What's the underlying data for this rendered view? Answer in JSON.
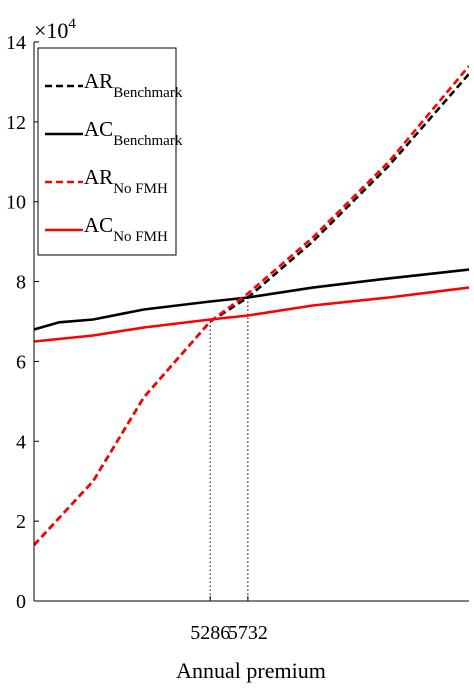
{
  "chart_data": {
    "type": "line",
    "xlabel": "Annual premium",
    "ylabel": "",
    "y_multiplier": {
      "base": "×10",
      "exponent": "4"
    },
    "ylim": [
      0,
      140000
    ],
    "y_ticks": [
      0,
      20000,
      40000,
      60000,
      80000,
      100000,
      120000,
      140000
    ],
    "y_tick_labels": [
      "0",
      "2",
      "4",
      "6",
      "8",
      "10",
      "12",
      "14"
    ],
    "xlim": [
      3200,
      8350
    ],
    "x_ticks": [
      5286,
      5732
    ],
    "x_tick_labels": [
      "5286",
      "5732"
    ],
    "vlines": [
      5286,
      5732
    ],
    "grid": false,
    "legend_position": "top-left",
    "series": [
      {
        "name": "AR",
        "subscript": "Benchmark",
        "color": "#000000",
        "dashed": true,
        "x": [
          3200,
          3900,
          4500,
          5286,
          5732,
          6500,
          7400,
          8350
        ],
        "y": [
          14000,
          30000,
          51000,
          70000,
          76000,
          90000,
          109000,
          132000
        ]
      },
      {
        "name": "AC",
        "subscript": "Benchmark",
        "color": "#000000",
        "dashed": false,
        "x": [
          3200,
          3500,
          3900,
          4500,
          5286,
          5732,
          6500,
          7400,
          8350
        ],
        "y": [
          68000,
          69800,
          70500,
          73000,
          75000,
          76000,
          78500,
          80800,
          83000
        ]
      },
      {
        "name": "AR",
        "subscript": "No FMH",
        "color": "#ff0000",
        "dashed": true,
        "x": [
          3200,
          3900,
          4500,
          5286,
          5732,
          6500,
          7400,
          8350
        ],
        "y": [
          14000,
          30000,
          51000,
          70000,
          77000,
          91000,
          110000,
          134000
        ]
      },
      {
        "name": "AC",
        "subscript": "No FMH",
        "color": "#ff0000",
        "dashed": false,
        "x": [
          3200,
          3900,
          4500,
          5286,
          5732,
          6500,
          7400,
          8350
        ],
        "y": [
          65000,
          66500,
          68500,
          70500,
          71500,
          74000,
          76000,
          78500
        ]
      }
    ]
  }
}
